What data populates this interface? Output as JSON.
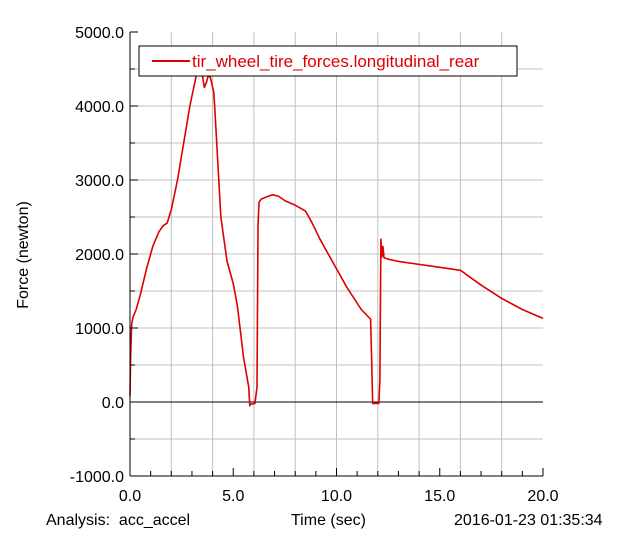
{
  "chart_data": {
    "type": "line",
    "ylabel": "Force (newton)",
    "xlabel": "Time (sec)",
    "xlim": [
      0.0,
      20.0
    ],
    "ylim": [
      -1000.0,
      5000.0
    ],
    "x_ticks": [
      0.0,
      5.0,
      10.0,
      15.0,
      20.0
    ],
    "x_tick_labels": [
      "0.0",
      "5.0",
      "10.0",
      "15.0",
      "20.0"
    ],
    "y_ticks": [
      -1000.0,
      0.0,
      1000.0,
      2000.0,
      3000.0,
      4000.0,
      5000.0
    ],
    "y_tick_labels": [
      "-1000.0",
      "0.0",
      "1000.0",
      "2000.0",
      "3000.0",
      "4000.0",
      "5000.0"
    ],
    "grid": true,
    "legend_position": "top",
    "series": [
      {
        "name": "tir_wheel_tire_forces.longitudinal_rear",
        "color": "#dd0000",
        "x": [
          0.0,
          0.03,
          0.08,
          0.15,
          0.3,
          0.5,
          0.8,
          1.1,
          1.4,
          1.6,
          1.8,
          2.0,
          2.3,
          2.6,
          2.9,
          3.2,
          3.35,
          3.5,
          3.6,
          3.7,
          3.8,
          3.9,
          4.0,
          4.05,
          4.1,
          4.2,
          4.4,
          4.7,
          5.0,
          5.2,
          5.5,
          5.75,
          5.8,
          5.85,
          6.05,
          6.15,
          6.2,
          6.25,
          6.35,
          6.6,
          6.9,
          7.2,
          7.5,
          8.0,
          8.5,
          8.8,
          9.2,
          9.8,
          10.5,
          11.2,
          11.65,
          11.7,
          11.75,
          12.05,
          12.1,
          12.15,
          12.2,
          12.25,
          12.3,
          12.5,
          13.0,
          14.0,
          15.0,
          16.0,
          16.5,
          17.0,
          18.0,
          19.0,
          20.0
        ],
        "y": [
          80,
          600,
          1050,
          1150,
          1250,
          1450,
          1800,
          2100,
          2300,
          2380,
          2420,
          2600,
          3000,
          3500,
          4000,
          4400,
          4500,
          4420,
          4250,
          4320,
          4420,
          4380,
          4250,
          4200,
          4000,
          3500,
          2500,
          1900,
          1600,
          1300,
          600,
          200,
          -50,
          -30,
          -20,
          200,
          2400,
          2700,
          2740,
          2770,
          2800,
          2780,
          2720,
          2660,
          2580,
          2430,
          2200,
          1900,
          1550,
          1250,
          1120,
          600,
          -20,
          -20,
          300,
          2200,
          1960,
          2100,
          1950,
          1930,
          1900,
          1860,
          1820,
          1780,
          1680,
          1580,
          1400,
          1250,
          1130
        ]
      }
    ],
    "axis_zero_line": true
  },
  "footer": {
    "analysis_label": "Analysis:  acc_accel",
    "xaxis_label": "Time (sec)",
    "timestamp": "2016-01-23 01:35:34"
  },
  "colors": {
    "series": "#dd0000",
    "grid": "#c0c0c0",
    "axis": "#000000",
    "background": "#ffffff"
  }
}
